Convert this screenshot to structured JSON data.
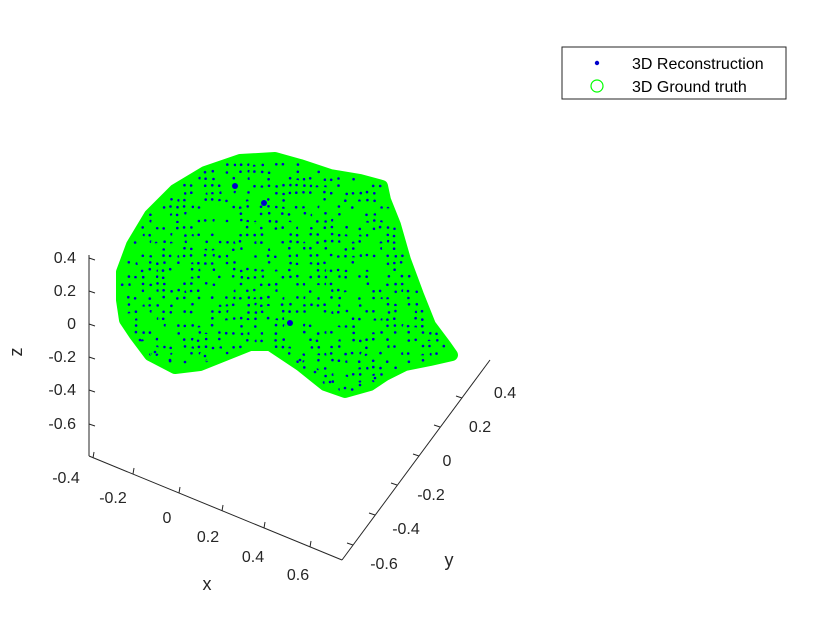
{
  "chart_data": {
    "type": "scatter",
    "title": "",
    "xlabel": "x",
    "ylabel": "y",
    "zlabel": "z",
    "xlim": [
      -0.4,
      0.7
    ],
    "ylim": [
      -0.7,
      0.5
    ],
    "zlim": [
      -0.7,
      0.45
    ],
    "x_ticks": [
      "-0.4",
      "-0.2",
      "0",
      "0.2",
      "0.4",
      "0.6"
    ],
    "y_ticks": [
      "-0.6",
      "-0.4",
      "-0.2",
      "0",
      "0.2",
      "0.4"
    ],
    "z_ticks": [
      "0.4",
      "0.2",
      "0",
      "-0.2",
      "-0.4",
      "-0.6"
    ],
    "grid": false,
    "legend_position": "top-right",
    "colors": {
      "reconstruction": "#0000cc",
      "ground_truth": "#00ff00",
      "axis": "#262626"
    },
    "series": [
      {
        "name": "3D Reconstruction",
        "marker": "dot",
        "note_points": "dense 3D point cloud of a face-like surface",
        "points": [
          [
            -0.05,
            0.35,
            0.28
          ],
          [
            0.05,
            0.3,
            0.26
          ],
          [
            0.15,
            0.1,
            0.02
          ],
          [
            0.0,
            0.0,
            0.1
          ],
          [
            0.2,
            -0.1,
            -0.05
          ],
          [
            -0.2,
            0.2,
            0.05
          ],
          [
            0.3,
            0.0,
            -0.1
          ],
          [
            0.1,
            -0.2,
            -0.2
          ]
        ]
      },
      {
        "name": "3D Ground truth",
        "marker": "circle",
        "points": [
          [
            -0.05,
            0.35,
            0.28
          ],
          [
            0.05,
            0.3,
            0.26
          ],
          [
            0.15,
            0.1,
            0.02
          ],
          [
            0.0,
            0.0,
            0.1
          ],
          [
            0.2,
            -0.1,
            -0.05
          ],
          [
            -0.2,
            0.2,
            0.05
          ],
          [
            0.3,
            0.0,
            -0.1
          ],
          [
            0.1,
            -0.2,
            -0.2
          ]
        ]
      }
    ]
  }
}
